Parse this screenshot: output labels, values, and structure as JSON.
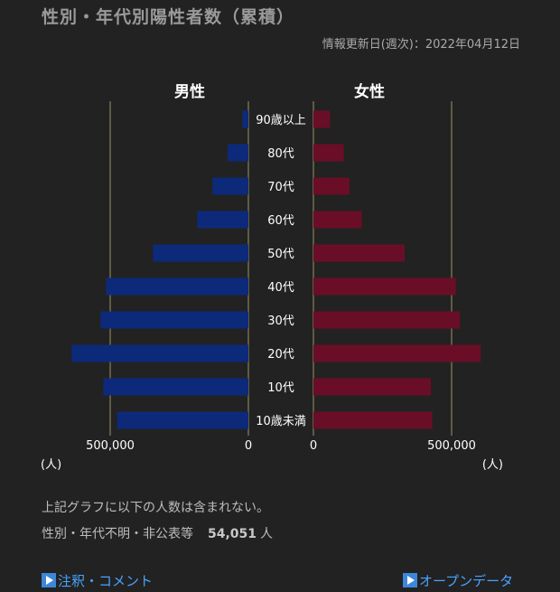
{
  "header": {
    "title": "性別・年代別陽性者数（累積）",
    "updated": "情報更新日(週次)：2022年04月12日"
  },
  "chart_data": {
    "type": "bar",
    "orientation": "horizontal-population-pyramid",
    "categories": [
      "90歳以上",
      "80代",
      "70代",
      "60代",
      "50代",
      "40代",
      "30代",
      "20代",
      "10代",
      "10歳未満"
    ],
    "series": [
      {
        "name": "男性",
        "color": "#0d2a7a",
        "values": [
          22000,
          75000,
          130000,
          185000,
          345000,
          515000,
          535000,
          640000,
          525000,
          475000
        ]
      },
      {
        "name": "女性",
        "color": "#6a0e28",
        "values": [
          60000,
          110000,
          130000,
          175000,
          330000,
          515000,
          530000,
          605000,
          425000,
          430000
        ]
      }
    ],
    "xlim": [
      0,
      500000
    ],
    "tick_labels": {
      "left": [
        "500,000",
        "0"
      ],
      "right": [
        "0",
        "500,000"
      ]
    },
    "unit_label": "(人)",
    "grid": true,
    "gridline_color": "#9b9467"
  },
  "notes": {
    "line1": "上記グラフに以下の人数は含まれない。",
    "line2_label": "性別・年代不明・非公表等",
    "line2_value": "54,051",
    "line2_unit": "人"
  },
  "links": {
    "left": "注釈・コメント",
    "right": "オープンデータ"
  }
}
